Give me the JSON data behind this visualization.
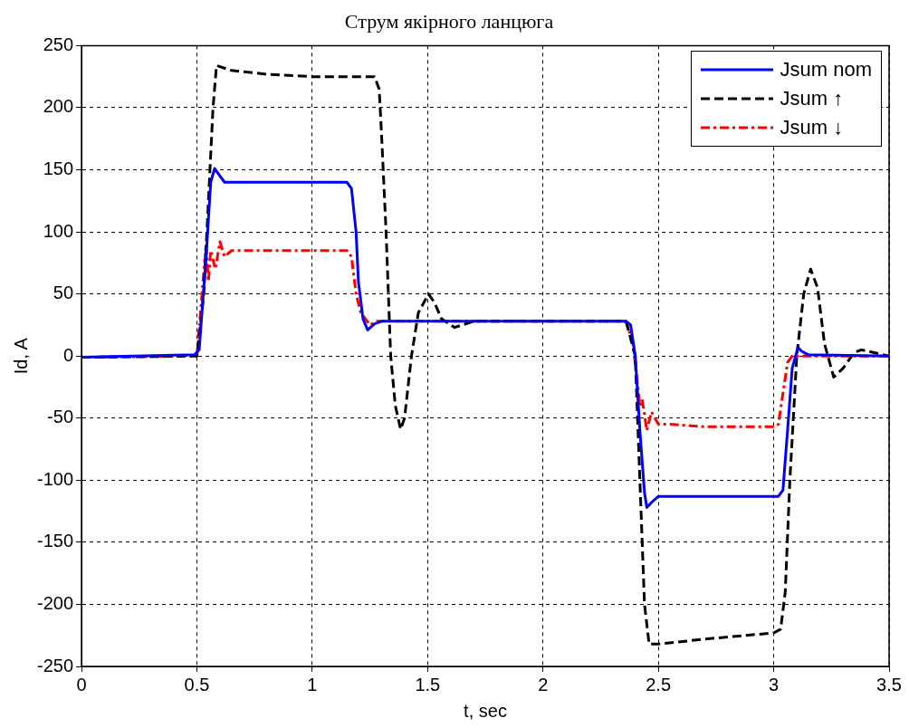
{
  "chart_data": {
    "type": "line",
    "title": "Струм якірного ланцюга",
    "xlabel": "t, sec",
    "ylabel": "Id, A",
    "xlim": [
      0,
      3.5
    ],
    "xticks": [
      0,
      0.5,
      1,
      1.5,
      2,
      2.5,
      3,
      3.5
    ],
    "ylim": [
      -250,
      250
    ],
    "yticks": [
      -250,
      -200,
      -150,
      -100,
      -50,
      0,
      50,
      100,
      150,
      200,
      250
    ],
    "grid": true,
    "legend": "top right",
    "marker": "none",
    "series": [
      {
        "name": "Jsum nom",
        "color": "#0000ff",
        "line_style": "solid",
        "x": [
          0,
          0.49,
          0.51,
          0.54,
          0.56,
          0.577,
          0.6,
          0.62,
          1.15,
          1.17,
          1.19,
          1.2,
          1.22,
          1.24,
          1.27,
          1.3,
          2.36,
          2.38,
          2.4,
          2.42,
          2.44,
          2.45,
          2.47,
          2.5,
          3.02,
          3.04,
          3.06,
          3.08,
          3.105,
          3.12,
          3.15,
          3.5
        ],
        "values": [
          -1,
          1,
          5,
          80,
          140,
          151,
          145,
          140,
          140,
          135,
          100,
          60,
          30,
          21,
          26,
          28,
          28,
          25,
          0,
          -60,
          -110,
          -122,
          -118,
          -113,
          -113,
          -108,
          -60,
          -10,
          7,
          4,
          1,
          0
        ]
      },
      {
        "name": "Jsum ↑",
        "color": "#000000",
        "line_style": "dashed",
        "x": [
          0,
          0.5,
          0.53,
          0.57,
          0.585,
          0.65,
          0.8,
          1.0,
          1.27,
          1.29,
          1.3,
          1.32,
          1.34,
          1.36,
          1.383,
          1.4,
          1.43,
          1.46,
          1.504,
          1.53,
          1.56,
          1.617,
          1.65,
          1.7,
          2.36,
          2.4,
          2.42,
          2.44,
          2.46,
          2.5,
          2.7,
          3.0,
          3.03,
          3.05,
          3.07,
          3.1,
          3.13,
          3.16,
          3.19,
          3.22,
          3.26,
          3.3,
          3.35,
          3.38,
          3.5
        ],
        "values": [
          -1,
          0,
          50,
          200,
          234,
          230,
          227,
          225,
          225,
          215,
          180,
          100,
          0,
          -40,
          -59,
          -50,
          0,
          35,
          50,
          43,
          30,
          23,
          25,
          28,
          28,
          0,
          -100,
          -200,
          -232,
          -232,
          -228,
          -223,
          -220,
          -190,
          -100,
          0,
          50,
          70,
          55,
          10,
          -17,
          -10,
          3,
          5,
          0
        ]
      },
      {
        "name": "Jsum ↓",
        "color": "#ff0000",
        "line_style": "dotted",
        "x": [
          0,
          0.5,
          0.54,
          0.55,
          0.56,
          0.58,
          0.6,
          0.62,
          0.65,
          1.15,
          1.17,
          1.19,
          1.21,
          1.23,
          1.25,
          1.28,
          2.36,
          2.39,
          2.42,
          2.43,
          2.45,
          2.47,
          2.5,
          2.55,
          2.7,
          3.0,
          3.02,
          3.04,
          3.06,
          3.08,
          3.5
        ],
        "values": [
          -1,
          0,
          90,
          60,
          85,
          70,
          92,
          80,
          85,
          85,
          80,
          50,
          35,
          30,
          25,
          28,
          28,
          10,
          -40,
          -35,
          -60,
          -45,
          -55,
          -55,
          -57,
          -57,
          -55,
          -30,
          -5,
          0,
          0
        ]
      }
    ]
  }
}
